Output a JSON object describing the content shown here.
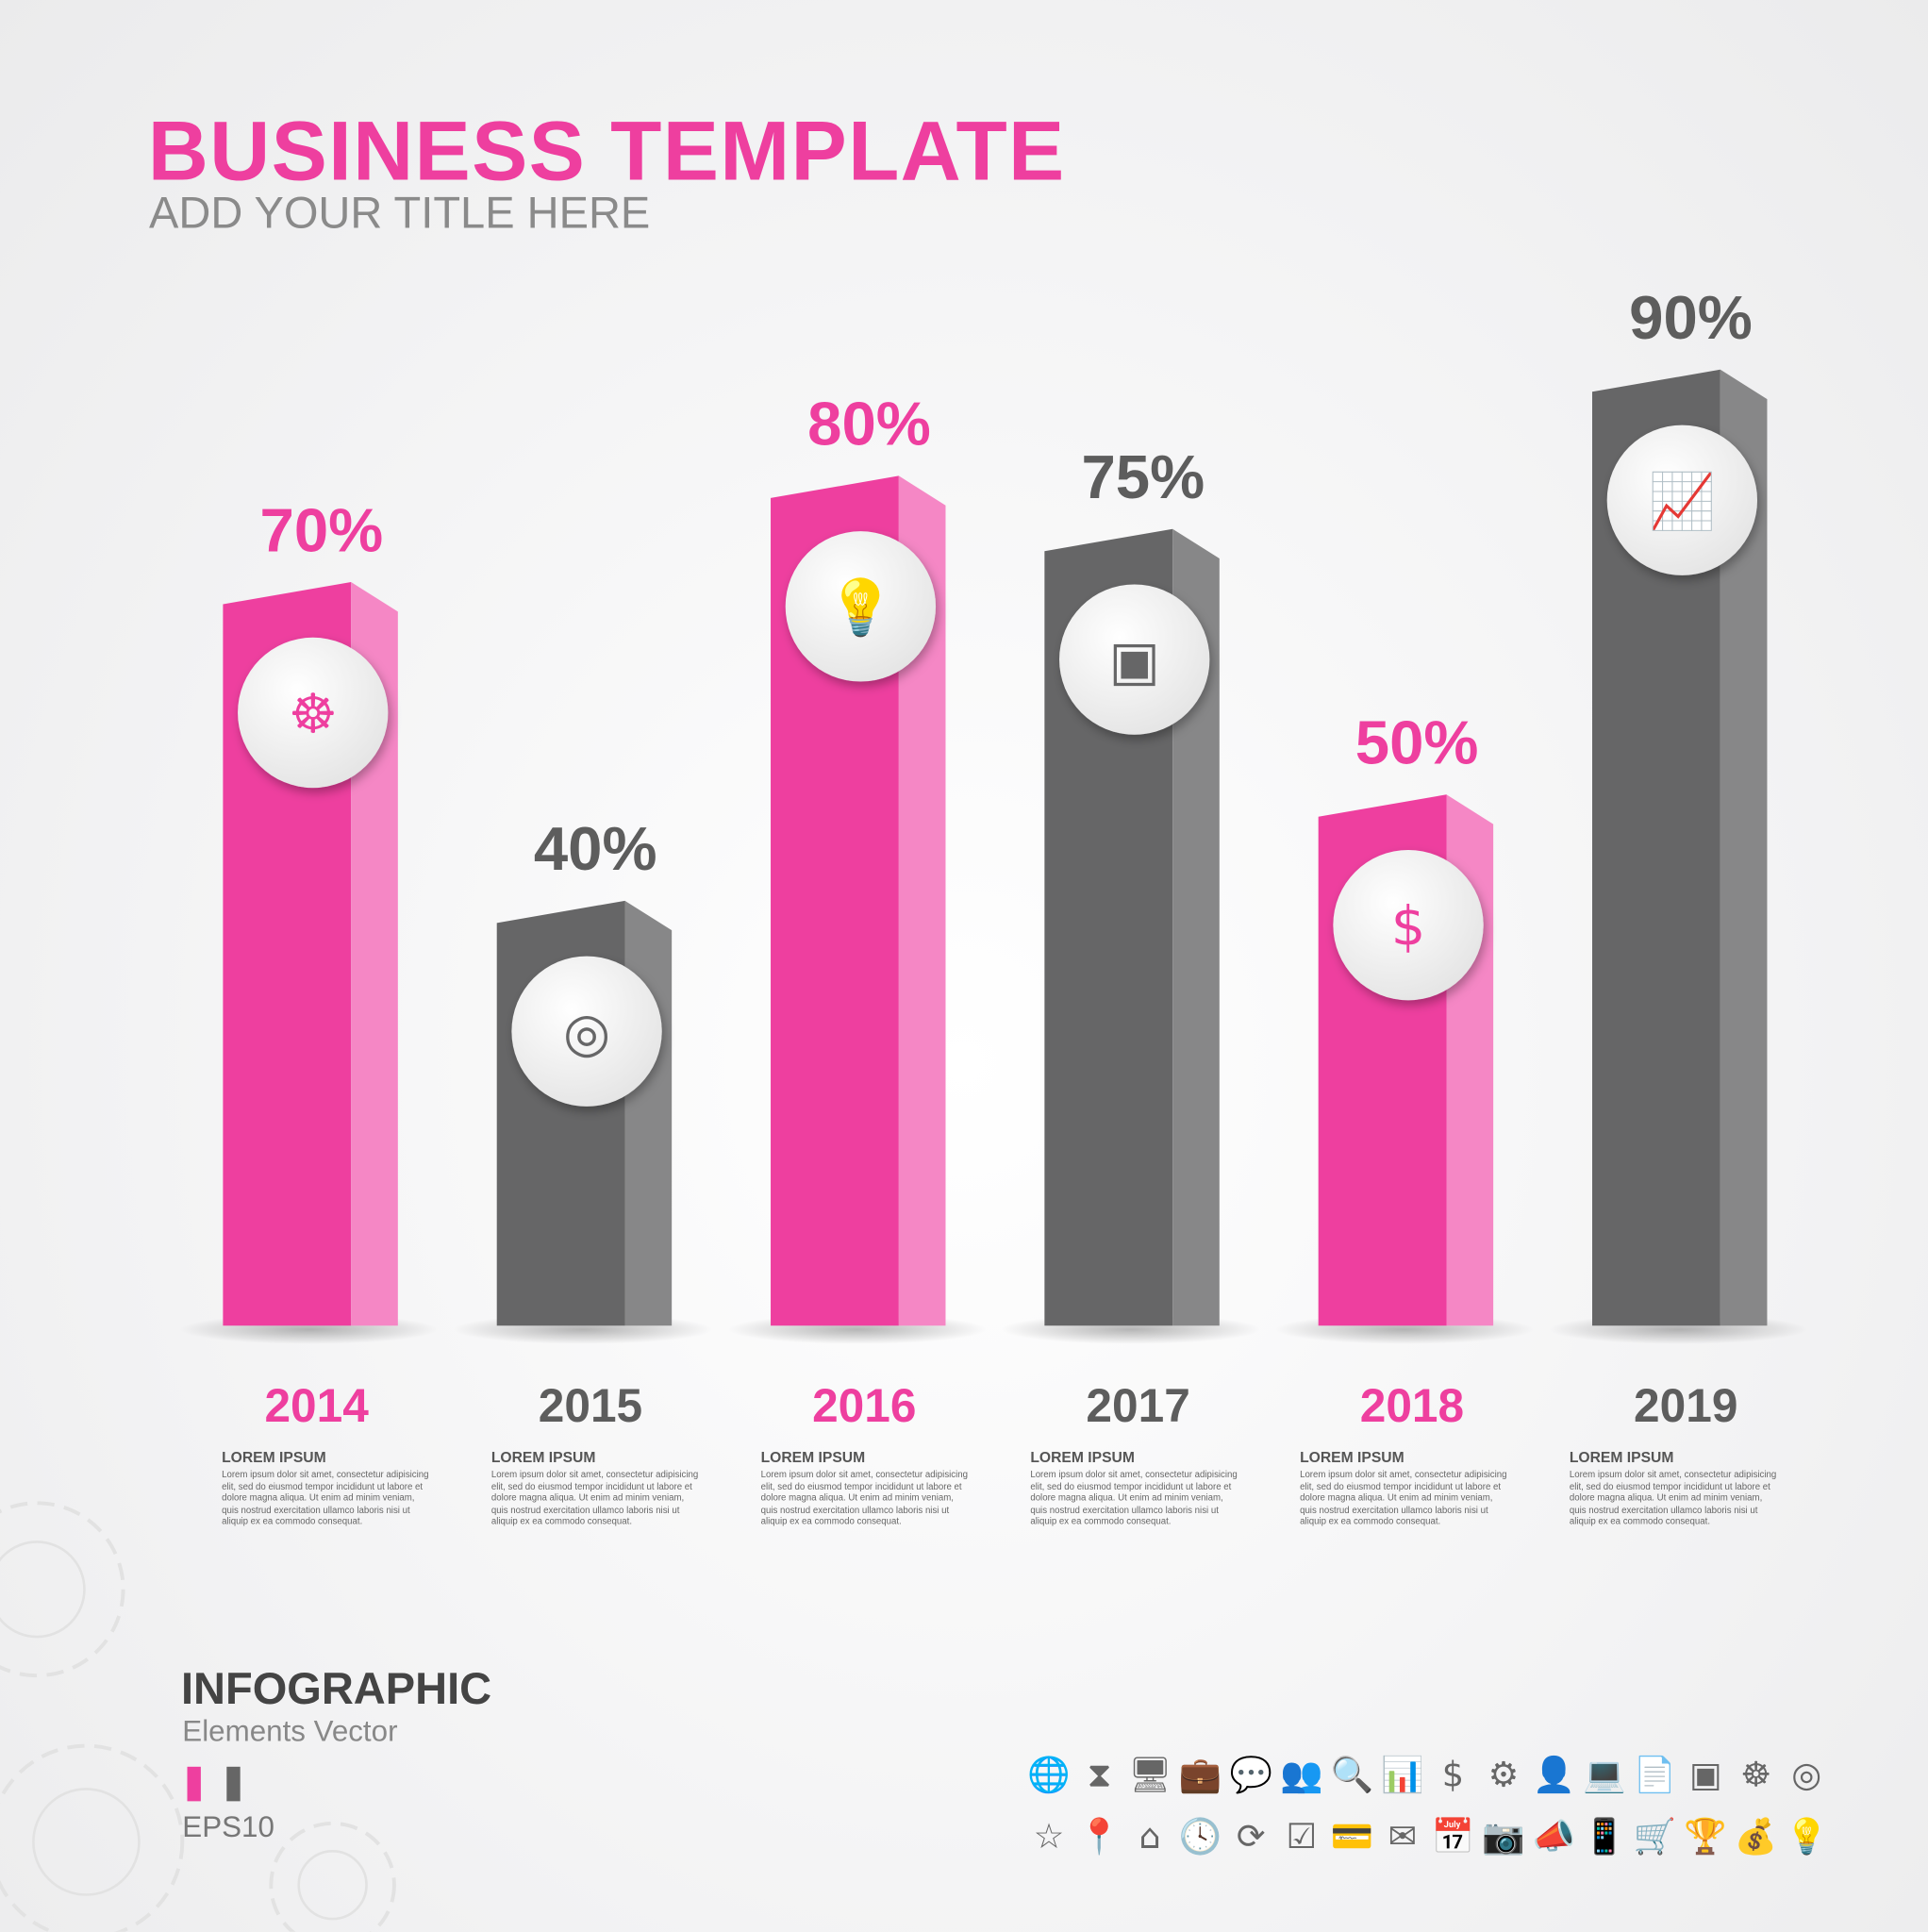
{
  "header": {
    "title": "BUSINESS  TEMPLATE",
    "subtitle": "ADD YOUR  TITLE HERE"
  },
  "colors": {
    "pink": "#ee3f9f",
    "pink_side": "#f587c5",
    "gray": "#666667",
    "gray_side": "#878788"
  },
  "chart_data": {
    "type": "bar",
    "categories": [
      "2014",
      "2015",
      "2016",
      "2017",
      "2018",
      "2019"
    ],
    "values": [
      70,
      40,
      80,
      75,
      50,
      90
    ],
    "data_labels": [
      "70%",
      "40%",
      "80%",
      "75%",
      "50%",
      "90%"
    ],
    "colors": [
      "pink",
      "gray",
      "pink",
      "gray",
      "pink",
      "gray"
    ],
    "icons": [
      "head-gears-icon",
      "target-icon",
      "lightbulb-icon",
      "strategy-board-icon",
      "money-bag-icon",
      "growth-chart-icon"
    ],
    "title": "",
    "xlabel": "",
    "ylabel": "",
    "grid": false
  },
  "descriptions": [
    {
      "title": "LOREM IPSUM",
      "body": "Lorem ipsum dolor sit amet, consectetur adipisicing elit, sed do eiusmod tempor incididunt ut labore et dolore magna aliqua. Ut enim ad minim veniam, quis nostrud exercitation ullamco laboris nisi ut aliquip ex ea commodo consequat."
    },
    {
      "title": "LOREM IPSUM",
      "body": "Lorem ipsum dolor sit amet, consectetur adipisicing elit, sed do eiusmod tempor incididunt ut labore et dolore magna aliqua. Ut enim ad minim veniam, quis nostrud exercitation ullamco laboris nisi ut aliquip ex ea commodo consequat."
    },
    {
      "title": "LOREM IPSUM",
      "body": "Lorem ipsum dolor sit amet, consectetur adipisicing elit, sed do eiusmod tempor incididunt ut labore et dolore magna aliqua. Ut enim ad minim veniam, quis nostrud exercitation ullamco laboris nisi ut aliquip ex ea commodo consequat."
    },
    {
      "title": "LOREM IPSUM",
      "body": "Lorem ipsum dolor sit amet, consectetur adipisicing elit, sed do eiusmod tempor incididunt ut labore et dolore magna aliqua. Ut enim ad minim veniam, quis nostrud exercitation ullamco laboris nisi ut aliquip ex ea commodo consequat."
    },
    {
      "title": "LOREM IPSUM",
      "body": "Lorem ipsum dolor sit amet, consectetur adipisicing elit, sed do eiusmod tempor incididunt ut labore et dolore magna aliqua. Ut enim ad minim veniam, quis nostrud exercitation ullamco laboris nisi ut aliquip ex ea commodo consequat."
    },
    {
      "title": "LOREM IPSUM",
      "body": "Lorem ipsum dolor sit amet, consectetur adipisicing elit, sed do eiusmod tempor incididunt ut labore et dolore magna aliqua. Ut enim ad minim veniam, quis nostrud exercitation ullamco laboris nisi ut aliquip ex ea commodo consequat."
    }
  ],
  "footer": {
    "title": "INFOGRAPHIC",
    "subtitle": "Elements  Vector",
    "format": "EPS10"
  },
  "icon_rows": [
    [
      "globe-icon",
      "hourglass-icon",
      "monitor-chart-icon",
      "briefcase-icon",
      "chat-icon",
      "team-icon",
      "search-icon",
      "bar-chart-icon",
      "dollar-icon",
      "gears-icon",
      "businessman-icon",
      "laptop-icon",
      "report-icon",
      "presentation-icon",
      "head-gears-icon",
      "target-icon"
    ],
    [
      "star-icon",
      "map-pin-icon",
      "home-icon",
      "clock-icon",
      "refresh-gear-icon",
      "checkbox-icon",
      "credit-cards-icon",
      "envelope-icon",
      "calendar-icon",
      "camera-icon",
      "megaphone-icon",
      "smartphone-icon",
      "cart-icon",
      "trophy-icon",
      "money-bag-icon",
      "lightbulb-icon"
    ]
  ]
}
